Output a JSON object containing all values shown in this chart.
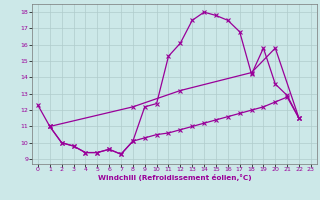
{
  "xlabel": "Windchill (Refroidissement éolien,°C)",
  "bg_color": "#cce8e8",
  "grid_color": "#b0cccc",
  "line_color": "#990099",
  "x_ticks": [
    0,
    1,
    2,
    3,
    4,
    5,
    6,
    7,
    8,
    9,
    10,
    11,
    12,
    13,
    14,
    15,
    16,
    17,
    18,
    19,
    20,
    21,
    22,
    23
  ],
  "y_ticks": [
    9,
    10,
    11,
    12,
    13,
    14,
    15,
    16,
    17,
    18
  ],
  "ylim": [
    8.7,
    18.5
  ],
  "xlim": [
    -0.5,
    23.5
  ],
  "curve1_x": [
    0,
    1,
    2,
    3,
    4,
    5,
    6,
    7,
    8,
    9,
    10,
    11,
    12,
    13,
    14,
    15,
    16,
    17,
    18,
    19,
    20,
    21,
    22
  ],
  "curve1_y": [
    12.3,
    11.0,
    10.0,
    9.8,
    9.4,
    9.4,
    9.6,
    9.3,
    10.1,
    12.2,
    12.4,
    15.3,
    16.1,
    17.5,
    18.0,
    17.8,
    17.5,
    16.8,
    14.2,
    15.8,
    13.6,
    12.9,
    11.5
  ],
  "curve2_x": [
    1,
    8,
    12,
    18,
    20,
    22
  ],
  "curve2_y": [
    11.0,
    12.2,
    13.2,
    14.3,
    15.8,
    11.5
  ],
  "curve3_x": [
    1,
    2,
    3,
    4,
    5,
    6,
    7,
    8,
    9,
    10,
    11,
    12,
    13,
    14,
    15,
    16,
    17,
    18,
    19,
    20,
    21,
    22
  ],
  "curve3_y": [
    11.0,
    10.0,
    9.8,
    9.4,
    9.4,
    9.6,
    9.3,
    10.1,
    10.3,
    10.5,
    10.6,
    10.8,
    11.0,
    11.2,
    11.4,
    11.6,
    11.8,
    12.0,
    12.2,
    12.5,
    12.8,
    11.5
  ]
}
